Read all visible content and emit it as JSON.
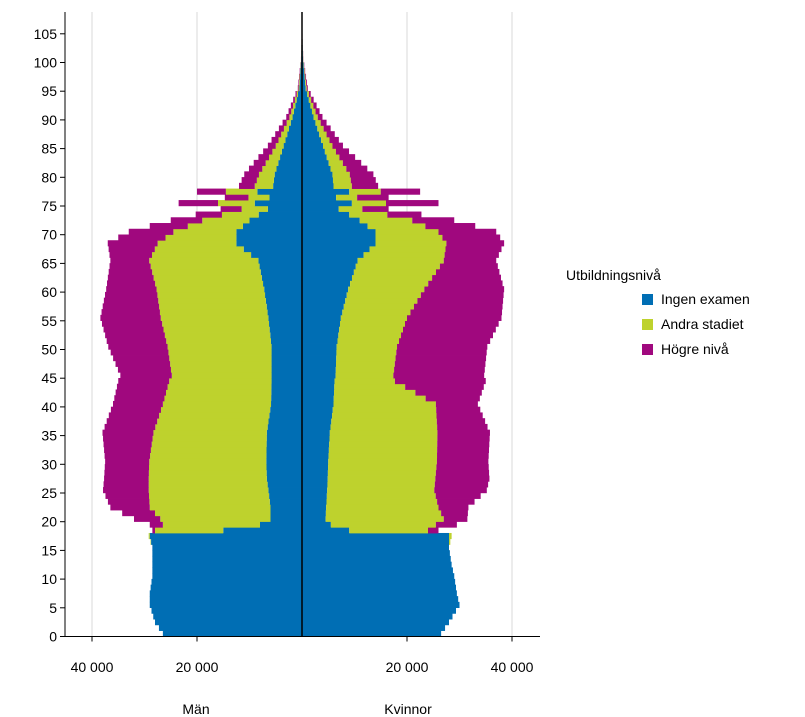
{
  "chart_data": {
    "type": "population-pyramid",
    "title": "",
    "ylabel": "",
    "sides": {
      "left": "Män",
      "right": "Kvinnor"
    },
    "ylim": [
      0,
      107
    ],
    "xlim": [
      -40000,
      40000
    ],
    "y_ticks": [
      0,
      5,
      10,
      15,
      20,
      25,
      30,
      35,
      40,
      45,
      50,
      55,
      60,
      65,
      70,
      75,
      80,
      85,
      90,
      95,
      100,
      105
    ],
    "y_tick_labels": [
      "0",
      "5",
      "10",
      "15",
      "20",
      "25",
      "30",
      "35",
      "40",
      "45",
      "50",
      "55",
      "60",
      "65",
      "70",
      "75",
      "80",
      "85",
      "90",
      "95",
      "100",
      "105"
    ],
    "x_ticks": [
      -40000,
      -20000,
      20000,
      40000
    ],
    "x_tick_labels": [
      "40 000",
      "20 000",
      "20 000",
      "40 000"
    ],
    "grid": "vertical",
    "legend": {
      "title": "Utbildningsnivå",
      "placement": "right",
      "items": [
        {
          "label": "Ingen examen",
          "color": "#006eb4"
        },
        {
          "label": "Andra stadiet",
          "color": "#bed22d"
        },
        {
          "label": "Högre nivå",
          "color": "#a0087e"
        }
      ]
    },
    "series_order": [
      "Ingen examen",
      "Andra stadiet",
      "Högre nivå"
    ],
    "men": {
      "ages": [
        0,
        2,
        5,
        7,
        10,
        12,
        15,
        17,
        18,
        19,
        20,
        22,
        25,
        27,
        30,
        35,
        40,
        44,
        45,
        50,
        55,
        60,
        65,
        68,
        70,
        72,
        74,
        75,
        76,
        77,
        78,
        80,
        85,
        90,
        95,
        100,
        105
      ],
      "ingen_examen": [
        26500,
        28000,
        29000,
        29000,
        28500,
        28500,
        28500,
        29000,
        15000,
        8000,
        6000,
        6000,
        6400,
        6700,
        6800,
        6700,
        5900,
        5800,
        5800,
        5800,
        6400,
        7200,
        8300,
        12500,
        12500,
        10000,
        6500,
        9000,
        6200,
        8500,
        5500,
        5200,
        3500,
        1800,
        500,
        150,
        50
      ],
      "andra_stadiet": [
        0,
        0,
        0,
        0,
        0,
        0,
        0,
        200,
        13000,
        18500,
        21000,
        23000,
        22800,
        22500,
        22300,
        21600,
        20600,
        19500,
        19000,
        19800,
        20500,
        20500,
        20800,
        15000,
        12000,
        9000,
        5000,
        7000,
        4000,
        6000,
        3500,
        3000,
        1500,
        600,
        150,
        30,
        5
      ],
      "hogre_niva": [
        0,
        0,
        0,
        0,
        0,
        0,
        0,
        0,
        500,
        2500,
        5000,
        7500,
        8700,
        8500,
        8400,
        9700,
        9500,
        9700,
        9800,
        11300,
        11500,
        9600,
        7400,
        9500,
        8500,
        6000,
        4000,
        7500,
        4500,
        5500,
        3000,
        2800,
        1500,
        600,
        150,
        20,
        0
      ]
    },
    "women": {
      "ages": [
        0,
        2,
        5,
        7,
        10,
        12,
        15,
        17,
        18,
        19,
        20,
        22,
        25,
        27,
        30,
        35,
        40,
        44,
        45,
        50,
        55,
        60,
        65,
        68,
        70,
        72,
        74,
        75,
        76,
        77,
        78,
        80,
        85,
        90,
        95,
        100,
        105
      ],
      "ingen_examen": [
        26500,
        28000,
        30000,
        29500,
        29000,
        28500,
        28000,
        28000,
        9000,
        5500,
        4500,
        4600,
        4800,
        4900,
        5000,
        5300,
        6000,
        6200,
        6400,
        6600,
        7400,
        8800,
        10600,
        14000,
        14000,
        11000,
        7000,
        9500,
        6500,
        9000,
        6000,
        5800,
        4000,
        2200,
        700,
        200,
        60
      ],
      "andra_stadiet": [
        0,
        0,
        0,
        0,
        0,
        0,
        0,
        500,
        15000,
        20000,
        22500,
        21400,
        20400,
        20500,
        20700,
        20500,
        19500,
        11500,
        11000,
        11500,
        12600,
        14500,
        16400,
        13500,
        12000,
        10000,
        4500,
        6500,
        4000,
        6000,
        3500,
        3300,
        1800,
        800,
        200,
        40,
        5
      ],
      "hogre_niva": [
        0,
        0,
        0,
        0,
        0,
        0,
        0,
        0,
        2000,
        4000,
        4500,
        5700,
        10000,
        10300,
        9800,
        10000,
        8000,
        17300,
        17300,
        17200,
        18000,
        15200,
        10000,
        11000,
        11000,
        8000,
        5000,
        10000,
        6000,
        7500,
        5000,
        4500,
        2000,
        900,
        200,
        30,
        0
      ]
    }
  }
}
